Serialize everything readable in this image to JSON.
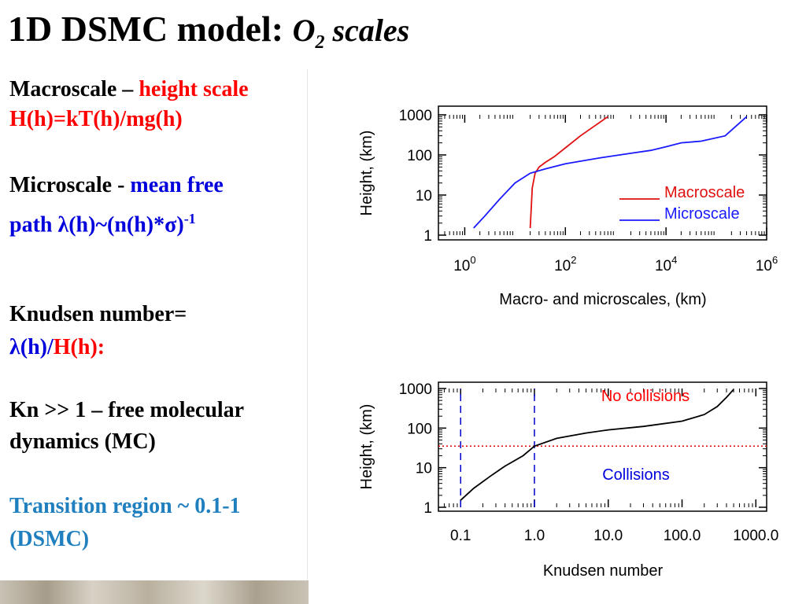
{
  "slide": {
    "title_main": "1D DSMC model: ",
    "title_o": "O",
    "title_sub": "2",
    "title_scales": " scales"
  },
  "left": {
    "macro_label": "Macroscale – ",
    "macro_red": "height scale",
    "macro_formula": "H(h)=kT(h)/mg(h)",
    "micro_label": "Microscale - ",
    "micro_blue1": "mean free",
    "micro_blue2": "path λ(h)~(n(h)*σ)",
    "micro_sup": "-1",
    "knudsen_label": "Knudsen number=",
    "knudsen_lambda": "λ(h)/",
    "knudsen_H": "H(h):",
    "kn_line1": "Kn >> 1 – free molecular",
    "kn_line2": "dynamics  (MC)",
    "transition1": "Transition region ~ 0.1-1",
    "transition2": "(DSMC)"
  },
  "colors": {
    "red": "#ff0000",
    "blue": "#0000dd",
    "teal": "#1f7fbf",
    "macro_line": "#e01010",
    "micro_line": "#1a1aff",
    "knudsen_line": "#000000"
  },
  "chart_data": [
    {
      "type": "line",
      "xlabel": "Macro- and microscales, (km)",
      "ylabel": "Height, (km)",
      "xscale": "log",
      "yscale": "log",
      "xlim": [
        0.3,
        1000000
      ],
      "ylim": [
        1,
        1000
      ],
      "xticks": [
        1,
        100,
        10000,
        1000000
      ],
      "xtick_base": "10",
      "xtick_exps": [
        "0",
        "2",
        "4",
        "6"
      ],
      "yticks": [
        1,
        10,
        100,
        1000
      ],
      "ytick_labels": [
        "1",
        "10",
        "100",
        "1000"
      ],
      "legend_position": "right",
      "series": [
        {
          "name": "Macroscale",
          "color": "#e01010",
          "x": [
            20,
            21,
            22,
            25,
            30,
            40,
            60,
            100,
            200,
            400,
            700
          ],
          "y": [
            1.5,
            5,
            15,
            35,
            50,
            65,
            90,
            150,
            300,
            550,
            900
          ]
        },
        {
          "name": "Microscale",
          "color": "#1a1aff",
          "x": [
            1.5,
            2.5,
            5,
            10,
            20,
            40,
            100,
            500,
            2000,
            5000,
            10000,
            20000,
            50000,
            150000,
            400000
          ],
          "y": [
            1.5,
            3,
            8,
            20,
            35,
            45,
            60,
            85,
            110,
            130,
            160,
            200,
            220,
            300,
            900
          ]
        }
      ]
    },
    {
      "type": "line",
      "xlabel": "Knudsen number",
      "ylabel": "Height, (km)",
      "xscale": "log",
      "yscale": "log",
      "xlim": [
        0.05,
        1400
      ],
      "ylim": [
        1,
        1000
      ],
      "xticks": [
        0.1,
        1,
        10,
        100,
        1000
      ],
      "xtick_labels": [
        "0.1",
        "1.0",
        "10.0",
        "100.0",
        "1000.0"
      ],
      "yticks": [
        1,
        10,
        100,
        1000
      ],
      "ytick_labels": [
        "1",
        "10",
        "100",
        "1000"
      ],
      "vlines": [
        0.1,
        1
      ],
      "hline": 35,
      "annotations": [
        "No collisions",
        "Collisions"
      ],
      "series": [
        {
          "color": "#000000",
          "x": [
            0.1,
            0.15,
            0.25,
            0.4,
            0.7,
            1,
            2,
            5,
            10,
            30,
            100,
            200,
            300,
            400,
            500
          ],
          "y": [
            1.5,
            3,
            6,
            11,
            20,
            35,
            55,
            75,
            90,
            110,
            150,
            220,
            350,
            600,
            950
          ]
        }
      ]
    }
  ]
}
